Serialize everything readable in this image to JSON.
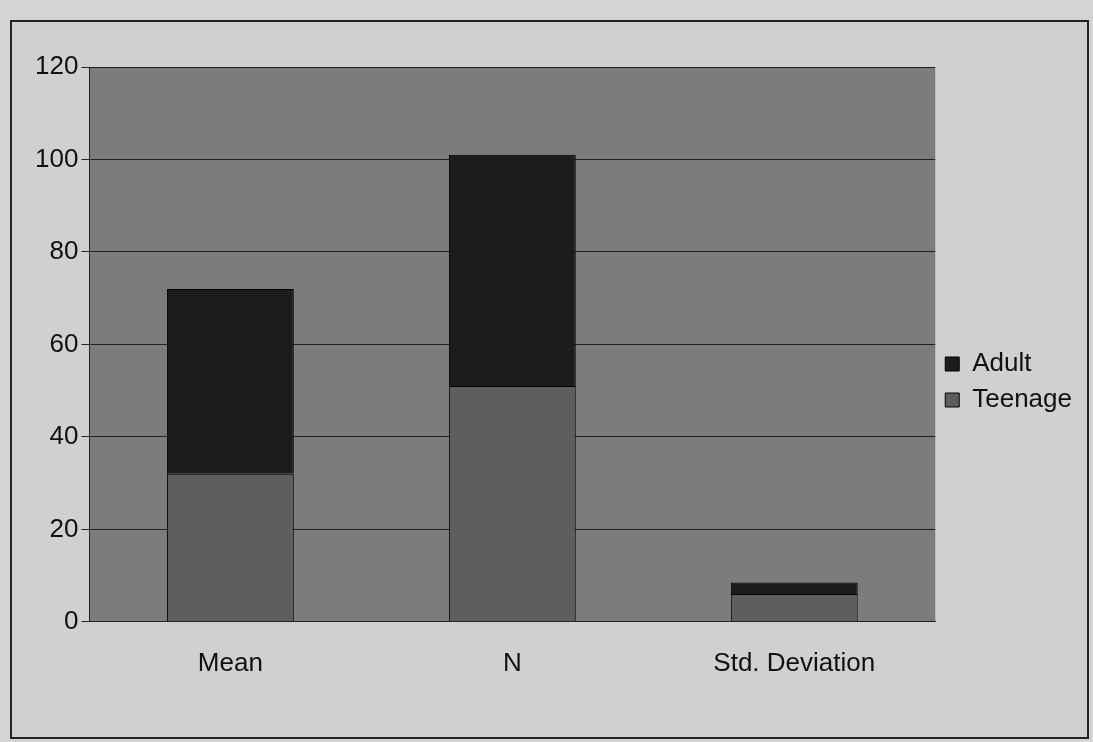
{
  "chart_data": {
    "type": "bar",
    "stacked": true,
    "categories": [
      "Mean",
      "N",
      "Std. Deviation"
    ],
    "series": [
      {
        "name": "Teenage",
        "color": "#5e5e5e",
        "values": [
          32,
          51,
          6
        ]
      },
      {
        "name": "Adult",
        "color": "#1c1c1c",
        "values": [
          40,
          50,
          2.5
        ]
      }
    ],
    "ylim": [
      0,
      120
    ],
    "yticks": [
      0,
      20,
      40,
      60,
      80,
      100,
      120
    ],
    "grid": "y",
    "legend": "right"
  }
}
